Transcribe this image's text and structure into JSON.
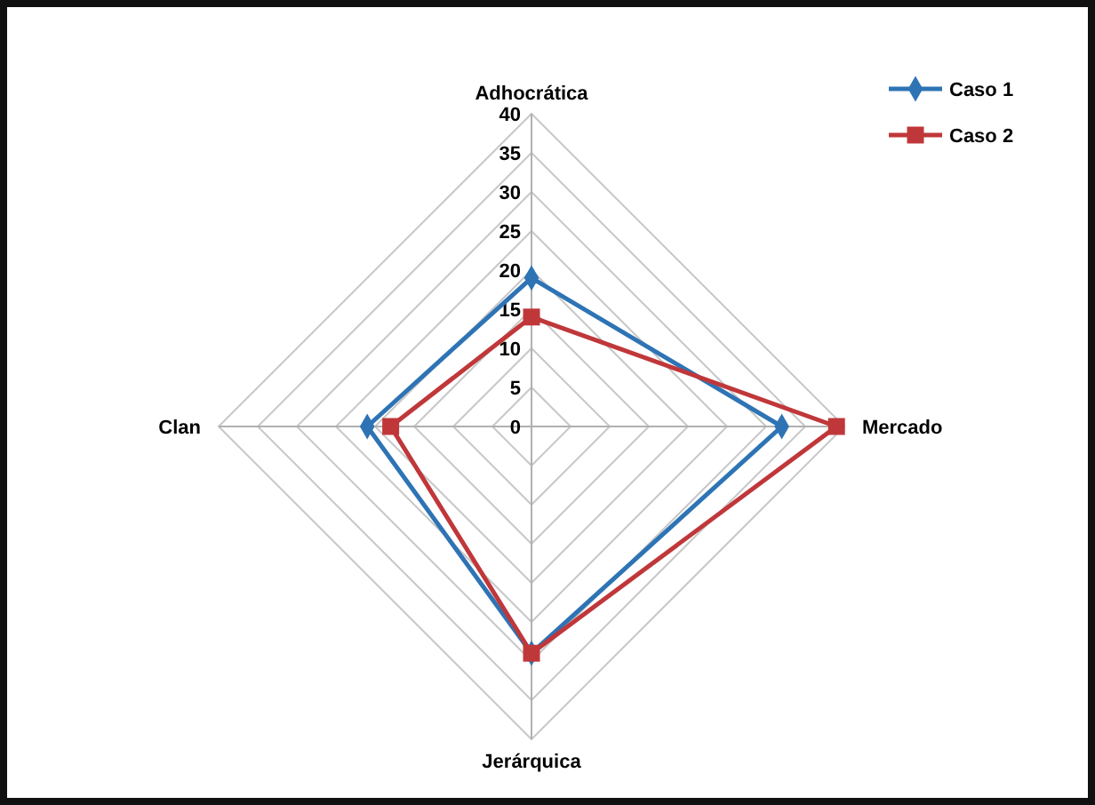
{
  "chart_data": {
    "type": "radar",
    "categories": [
      "Adhocrática",
      "Mercado",
      "Jerárquica",
      "Clan"
    ],
    "series": [
      {
        "name": "Caso 1",
        "color": "#2e74b5",
        "marker": "diamond",
        "values": [
          19,
          32,
          29,
          21
        ]
      },
      {
        "name": "Caso 2",
        "color": "#c0373a",
        "marker": "square",
        "values": [
          14,
          39,
          29,
          18
        ]
      }
    ],
    "ylim": [
      0,
      40
    ],
    "yticks": [
      0,
      5,
      10,
      15,
      20,
      25,
      30,
      35,
      40
    ],
    "grid": true,
    "legend": "top right",
    "line_style": "solid"
  }
}
